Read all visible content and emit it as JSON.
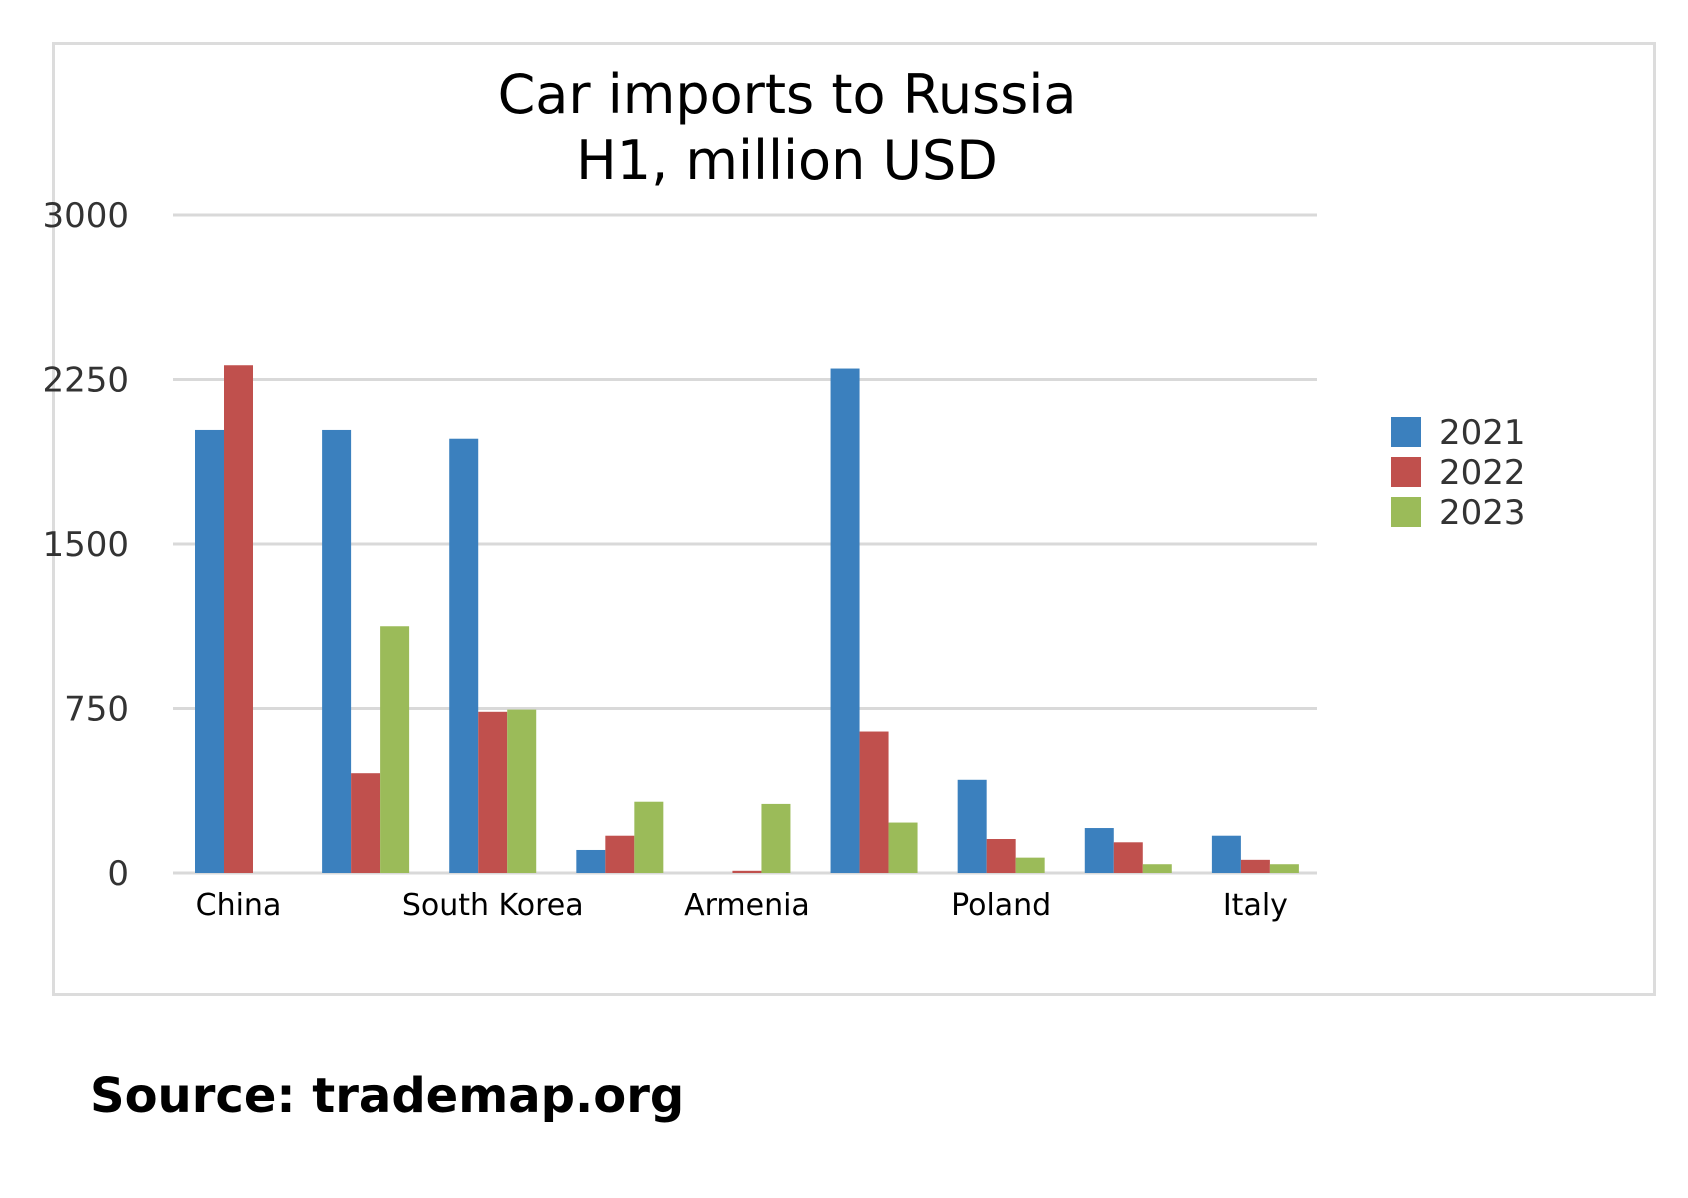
{
  "chart_data": {
    "type": "bar",
    "title_lines": [
      "Car imports to Russia",
      "H1, million USD"
    ],
    "xlabel": "",
    "ylabel": "",
    "ylim": [
      0,
      3000
    ],
    "yticks": [
      0,
      750,
      1500,
      2250,
      3000
    ],
    "grid": true,
    "legend_position": "right",
    "categories": [
      "China",
      "",
      "South Korea",
      "",
      "Armenia",
      "",
      "Poland",
      "",
      "Italy"
    ],
    "series": [
      {
        "name": "2021",
        "color": "#3b80be",
        "values": [
          2020,
          2020,
          1980,
          105,
          0,
          2300,
          425,
          205,
          170
        ]
      },
      {
        "name": "2022",
        "color": "#c0504d",
        "values": [
          2315,
          455,
          735,
          170,
          10,
          645,
          155,
          140,
          60
        ]
      },
      {
        "name": "2023",
        "color": "#9bbb59",
        "values": [
          0,
          1125,
          745,
          325,
          315,
          230,
          70,
          40,
          40
        ]
      }
    ]
  },
  "source_text": "Source: trademap.org"
}
